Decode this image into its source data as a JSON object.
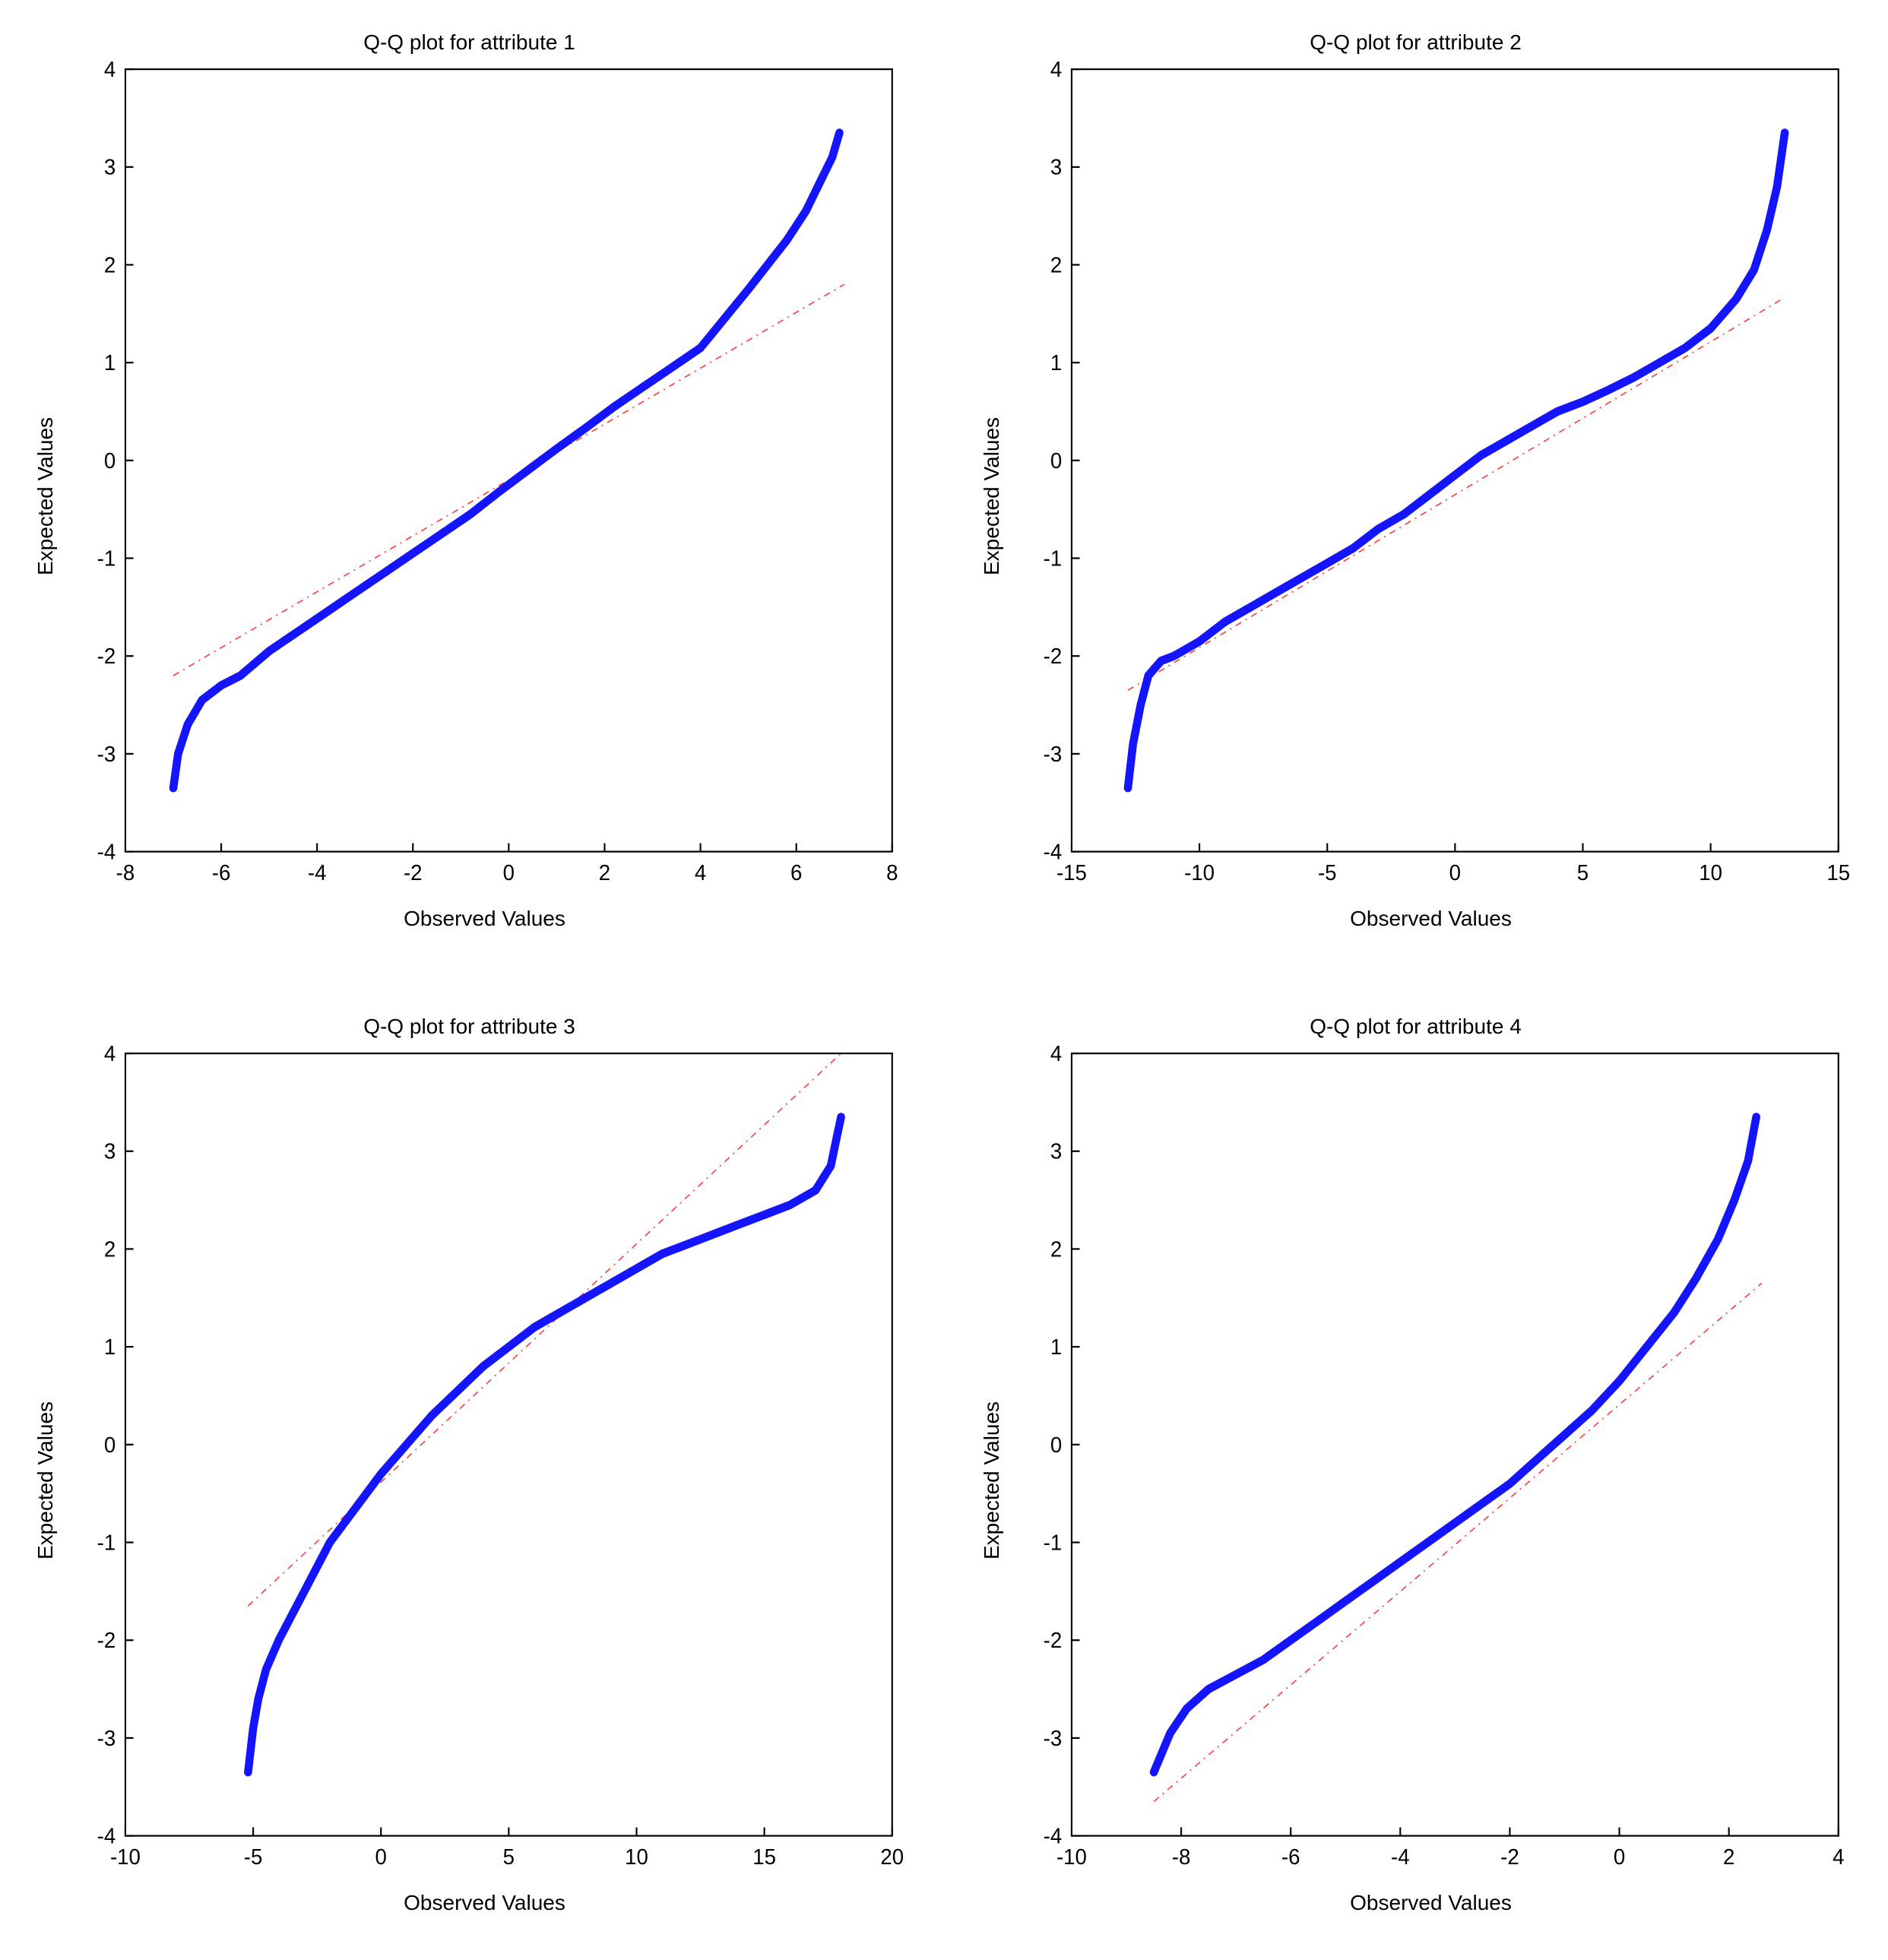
{
  "layout": {
    "rows": 2,
    "cols": 2
  },
  "common": {
    "xlabel": "Observed Values",
    "ylabel": "Expected Values",
    "title_fontsize": 28,
    "label_fontsize": 28,
    "tick_fontsize": 26,
    "background_color": "#ffffff",
    "axis_color": "#000000",
    "tick_length": 10,
    "curve_color": "#1414ff",
    "curve_width": 10,
    "ref_line_color": "#ff4040",
    "ref_line_width": 1.5,
    "ref_line_dash": "8 6 2 6"
  },
  "panels": [
    {
      "title": "Q-Q plot for attribute 1",
      "xlim": [
        -8,
        8
      ],
      "xtick_step": 2,
      "ylim": [
        -4,
        4
      ],
      "ytick_step": 1,
      "ref_line": {
        "x1": -7.0,
        "y1": -2.2,
        "x2": 7.0,
        "y2": 1.8
      },
      "curve": [
        [
          -7.0,
          -3.35
        ],
        [
          -6.9,
          -3.0
        ],
        [
          -6.7,
          -2.7
        ],
        [
          -6.4,
          -2.45
        ],
        [
          -6.0,
          -2.3
        ],
        [
          -5.6,
          -2.2
        ],
        [
          -5.0,
          -1.95
        ],
        [
          -4.4,
          -1.75
        ],
        [
          -3.8,
          -1.55
        ],
        [
          -3.2,
          -1.35
        ],
        [
          -2.6,
          -1.15
        ],
        [
          -2.0,
          -0.95
        ],
        [
          -1.4,
          -0.75
        ],
        [
          -0.8,
          -0.55
        ],
        [
          -0.2,
          -0.32
        ],
        [
          0.4,
          -0.1
        ],
        [
          1.0,
          0.12
        ],
        [
          1.6,
          0.33
        ],
        [
          2.2,
          0.55
        ],
        [
          2.8,
          0.75
        ],
        [
          3.4,
          0.95
        ],
        [
          4.0,
          1.15
        ],
        [
          4.5,
          1.45
        ],
        [
          5.0,
          1.75
        ],
        [
          5.4,
          2.0
        ],
        [
          5.8,
          2.25
        ],
        [
          6.2,
          2.55
        ],
        [
          6.5,
          2.85
        ],
        [
          6.75,
          3.1
        ],
        [
          6.9,
          3.35
        ]
      ]
    },
    {
      "title": "Q-Q plot for attribute 2",
      "xlim": [
        -15,
        15
      ],
      "xtick_step": 5,
      "ylim": [
        -4,
        4
      ],
      "ytick_step": 1,
      "ref_line": {
        "x1": -12.8,
        "y1": -2.35,
        "x2": 12.8,
        "y2": 1.65
      },
      "curve": [
        [
          -12.8,
          -3.35
        ],
        [
          -12.6,
          -2.9
        ],
        [
          -12.3,
          -2.5
        ],
        [
          -12.0,
          -2.2
        ],
        [
          -11.5,
          -2.05
        ],
        [
          -11.0,
          -2.0
        ],
        [
          -10.0,
          -1.85
        ],
        [
          -9.0,
          -1.65
        ],
        [
          -8.0,
          -1.5
        ],
        [
          -7.0,
          -1.35
        ],
        [
          -6.0,
          -1.2
        ],
        [
          -5.0,
          -1.05
        ],
        [
          -4.0,
          -0.9
        ],
        [
          -3.0,
          -0.7
        ],
        [
          -2.0,
          -0.55
        ],
        [
          -1.0,
          -0.35
        ],
        [
          0.0,
          -0.15
        ],
        [
          1.0,
          0.05
        ],
        [
          2.0,
          0.2
        ],
        [
          3.0,
          0.35
        ],
        [
          4.0,
          0.5
        ],
        [
          5.0,
          0.6
        ],
        [
          6.0,
          0.72
        ],
        [
          7.0,
          0.85
        ],
        [
          8.0,
          1.0
        ],
        [
          9.0,
          1.15
        ],
        [
          10.0,
          1.35
        ],
        [
          11.0,
          1.65
        ],
        [
          11.7,
          1.95
        ],
        [
          12.2,
          2.35
        ],
        [
          12.6,
          2.8
        ],
        [
          12.9,
          3.35
        ]
      ]
    },
    {
      "title": "Q-Q plot for attribute 3",
      "xlim": [
        -10,
        20
      ],
      "xtick_step": 5,
      "ylim": [
        -4,
        4
      ],
      "ytick_step": 1,
      "ref_line": {
        "x1": -5.2,
        "y1": -1.65,
        "x2": 18.0,
        "y2": 4.0
      },
      "curve": [
        [
          -5.2,
          -3.35
        ],
        [
          -5.0,
          -2.9
        ],
        [
          -4.8,
          -2.6
        ],
        [
          -4.5,
          -2.3
        ],
        [
          -4.0,
          -2.0
        ],
        [
          -3.5,
          -1.75
        ],
        [
          -3.0,
          -1.5
        ],
        [
          -2.5,
          -1.25
        ],
        [
          -2.0,
          -1.0
        ],
        [
          -1.0,
          -0.65
        ],
        [
          0.0,
          -0.3
        ],
        [
          1.0,
          0.0
        ],
        [
          2.0,
          0.3
        ],
        [
          3.0,
          0.55
        ],
        [
          4.0,
          0.8
        ],
        [
          5.0,
          1.0
        ],
        [
          6.0,
          1.2
        ],
        [
          7.0,
          1.35
        ],
        [
          8.0,
          1.5
        ],
        [
          9.0,
          1.65
        ],
        [
          10.0,
          1.8
        ],
        [
          11.0,
          1.95
        ],
        [
          12.0,
          2.05
        ],
        [
          13.0,
          2.15
        ],
        [
          14.0,
          2.25
        ],
        [
          15.0,
          2.35
        ],
        [
          16.0,
          2.45
        ],
        [
          17.0,
          2.6
        ],
        [
          17.6,
          2.85
        ],
        [
          17.8,
          3.1
        ],
        [
          18.0,
          3.35
        ]
      ]
    },
    {
      "title": "Q-Q plot for attribute 4",
      "xlim": [
        -10,
        4
      ],
      "xtick_step": 2,
      "ylim": [
        -4,
        4
      ],
      "ytick_step": 1,
      "ref_line": {
        "x1": -8.5,
        "y1": -3.65,
        "x2": 2.6,
        "y2": 1.65
      },
      "curve": [
        [
          -8.5,
          -3.35
        ],
        [
          -8.2,
          -2.95
        ],
        [
          -7.9,
          -2.7
        ],
        [
          -7.5,
          -2.5
        ],
        [
          -7.0,
          -2.35
        ],
        [
          -6.5,
          -2.2
        ],
        [
          -6.0,
          -2.0
        ],
        [
          -5.5,
          -1.8
        ],
        [
          -5.0,
          -1.6
        ],
        [
          -4.5,
          -1.4
        ],
        [
          -4.0,
          -1.2
        ],
        [
          -3.5,
          -1.0
        ],
        [
          -3.0,
          -0.8
        ],
        [
          -2.5,
          -0.6
        ],
        [
          -2.0,
          -0.4
        ],
        [
          -1.5,
          -0.15
        ],
        [
          -1.0,
          0.1
        ],
        [
          -0.5,
          0.35
        ],
        [
          0.0,
          0.65
        ],
        [
          0.5,
          1.0
        ],
        [
          1.0,
          1.35
        ],
        [
          1.4,
          1.7
        ],
        [
          1.8,
          2.1
        ],
        [
          2.1,
          2.5
        ],
        [
          2.35,
          2.9
        ],
        [
          2.5,
          3.35
        ]
      ]
    }
  ]
}
